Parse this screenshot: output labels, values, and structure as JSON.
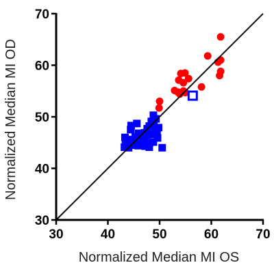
{
  "chart_data": {
    "type": "scatter",
    "title": "",
    "xlabel": "Normalized Median MI OS",
    "ylabel": "Normalized Median MI OD",
    "xlim": [
      30,
      70
    ],
    "ylim": [
      30,
      70
    ],
    "xticks": [
      30,
      40,
      50,
      60,
      70
    ],
    "yticks": [
      30,
      40,
      50,
      60,
      70
    ],
    "grid": false,
    "legend": "none",
    "reference_line": {
      "from": [
        30,
        30
      ],
      "to": [
        70,
        70
      ],
      "color": "#000000"
    },
    "series": [
      {
        "marker": "circle",
        "color": "#ff0000",
        "points": [
          [
            61.8,
            65.5
          ],
          [
            59.3,
            61.8
          ],
          [
            61.8,
            61.0
          ],
          [
            61.3,
            60.6
          ],
          [
            61.8,
            58.8
          ],
          [
            61.6,
            58.0
          ],
          [
            54.1,
            58.4
          ],
          [
            54.9,
            58.5
          ],
          [
            55.6,
            57.4
          ],
          [
            53.7,
            57.1
          ],
          [
            54.6,
            56.6
          ],
          [
            58.1,
            55.8
          ],
          [
            52.9,
            55.1
          ],
          [
            53.5,
            54.8
          ],
          [
            54.6,
            55.0
          ],
          [
            55.0,
            54.7
          ],
          [
            53.9,
            54.4
          ],
          [
            50.0,
            53.0
          ],
          [
            49.9,
            51.7
          ]
        ]
      },
      {
        "marker": "square",
        "color": "#0000ff",
        "points": [
          [
            48.8,
            50.3
          ],
          [
            49.3,
            49.6
          ],
          [
            48.4,
            49.1
          ],
          [
            48.9,
            48.2
          ],
          [
            48.0,
            48.2
          ],
          [
            49.8,
            47.9
          ],
          [
            47.6,
            47.7
          ],
          [
            49.1,
            47.3
          ],
          [
            44.5,
            48.3
          ],
          [
            45.6,
            48.7
          ],
          [
            47.1,
            46.9
          ],
          [
            48.3,
            46.6
          ],
          [
            49.5,
            46.8
          ],
          [
            44.4,
            47.5
          ],
          [
            45.9,
            46.8
          ],
          [
            46.6,
            46.1
          ],
          [
            43.3,
            46.0
          ],
          [
            43.9,
            45.6
          ],
          [
            44.6,
            45.5
          ],
          [
            45.3,
            46.1
          ],
          [
            45.9,
            45.6
          ],
          [
            46.8,
            45.7
          ],
          [
            47.5,
            45.4
          ],
          [
            48.1,
            45.0
          ],
          [
            48.8,
            45.1
          ],
          [
            49.6,
            45.9
          ],
          [
            43.4,
            45.1
          ],
          [
            43.9,
            44.5
          ],
          [
            44.5,
            44.5
          ],
          [
            45.1,
            44.9
          ],
          [
            45.8,
            44.4
          ],
          [
            46.5,
            44.7
          ],
          [
            47.2,
            44.3
          ],
          [
            48.0,
            44.1
          ],
          [
            43.2,
            44.1
          ],
          [
            44.0,
            44.0
          ],
          [
            50.5,
            44.0
          ]
        ]
      },
      {
        "marker": "open-square",
        "color": "#0000ff",
        "points": [
          [
            56.4,
            54.1
          ]
        ]
      }
    ]
  }
}
